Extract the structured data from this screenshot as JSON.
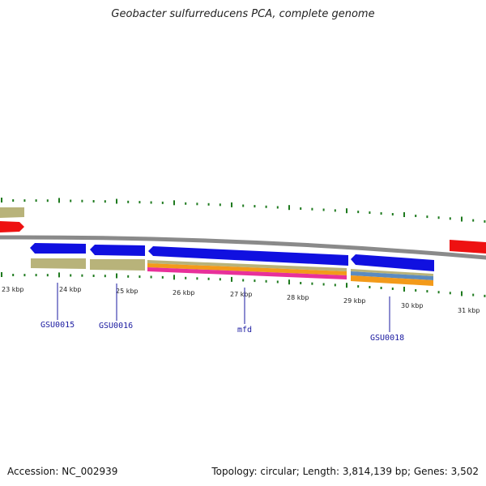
{
  "title": "Geobacter sulfurreducens PCA, complete genome",
  "footer": {
    "accession": "Accession: NC_002939",
    "summary": "Topology: circular; Length: 3,814,139 bp; Genes: 3,502"
  },
  "colors": {
    "backbone": "#8a8a8a",
    "cds": "#1010e0",
    "gene": "#b8b37a",
    "rna": "#ee1111",
    "misc_feature": "#f39a1a",
    "repeat": "#e8309a",
    "variation": "#5b8bc0",
    "tick": "#1e7a1e",
    "label": "#1a1aa0"
  },
  "map": {
    "position_labels": [
      "23 kbp",
      "24 kbp",
      "25 kbp",
      "26 kbp",
      "27 kbp",
      "28 kbp",
      "29 kbp",
      "30 kbp",
      "31 kbp"
    ],
    "gene_labels": [
      {
        "id": "gsu0015",
        "text": "GSU0015"
      },
      {
        "id": "gsu0016",
        "text": "GSU0016"
      },
      {
        "id": "mfd",
        "text": "mfd"
      },
      {
        "id": "gsu0018",
        "text": "GSU0018"
      }
    ]
  }
}
